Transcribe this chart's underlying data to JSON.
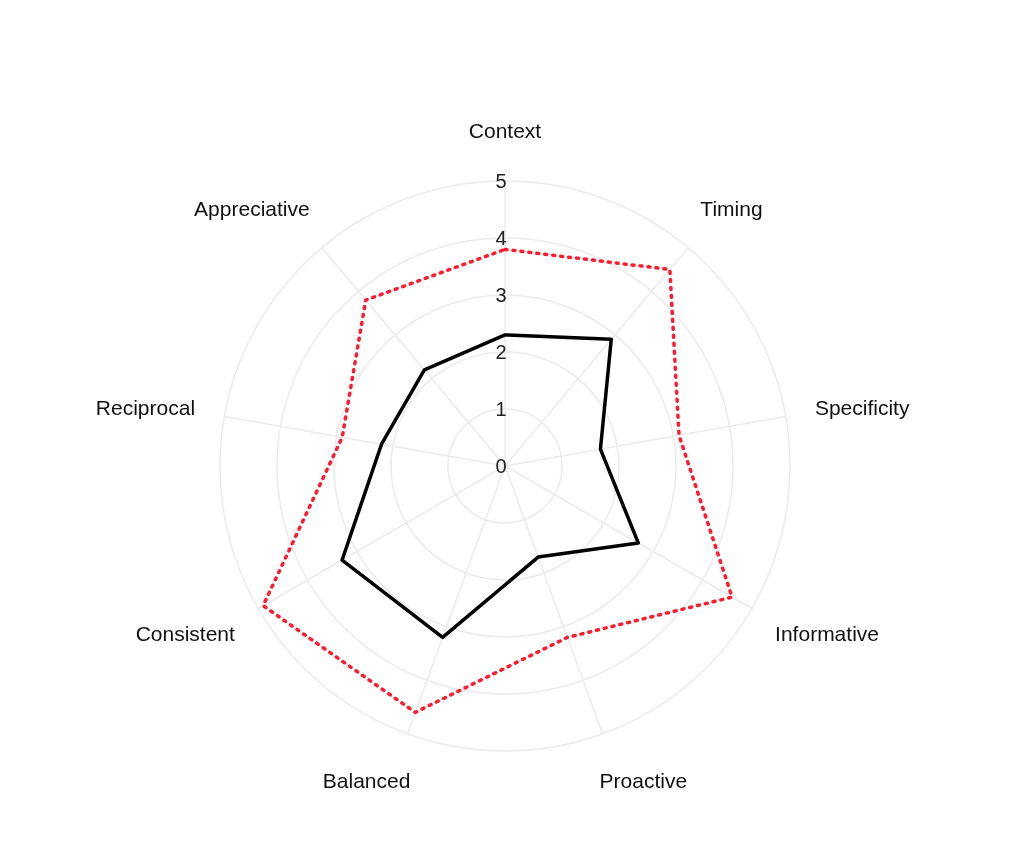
{
  "chart_data": {
    "type": "radar",
    "categories": [
      "Context",
      "Timing",
      "Specificity",
      "Informative",
      "Proactive",
      "Balanced",
      "Consistent",
      "Reciprocal",
      "Appreciative"
    ],
    "series": [
      {
        "color": "#ff1a2e",
        "line_style": "dotted",
        "values": [
          3.8,
          4.5,
          3.1,
          4.6,
          3.2,
          4.6,
          4.9,
          2.9,
          3.8
        ]
      },
      {
        "color": "#000000",
        "line_style": "solid",
        "values": [
          2.3,
          2.9,
          1.7,
          2.7,
          1.7,
          3.2,
          3.3,
          2.2,
          2.2
        ]
      }
    ],
    "ylim": [
      0,
      5
    ],
    "yticks": [
      0,
      1,
      2,
      3,
      4,
      5
    ],
    "grid": true
  }
}
